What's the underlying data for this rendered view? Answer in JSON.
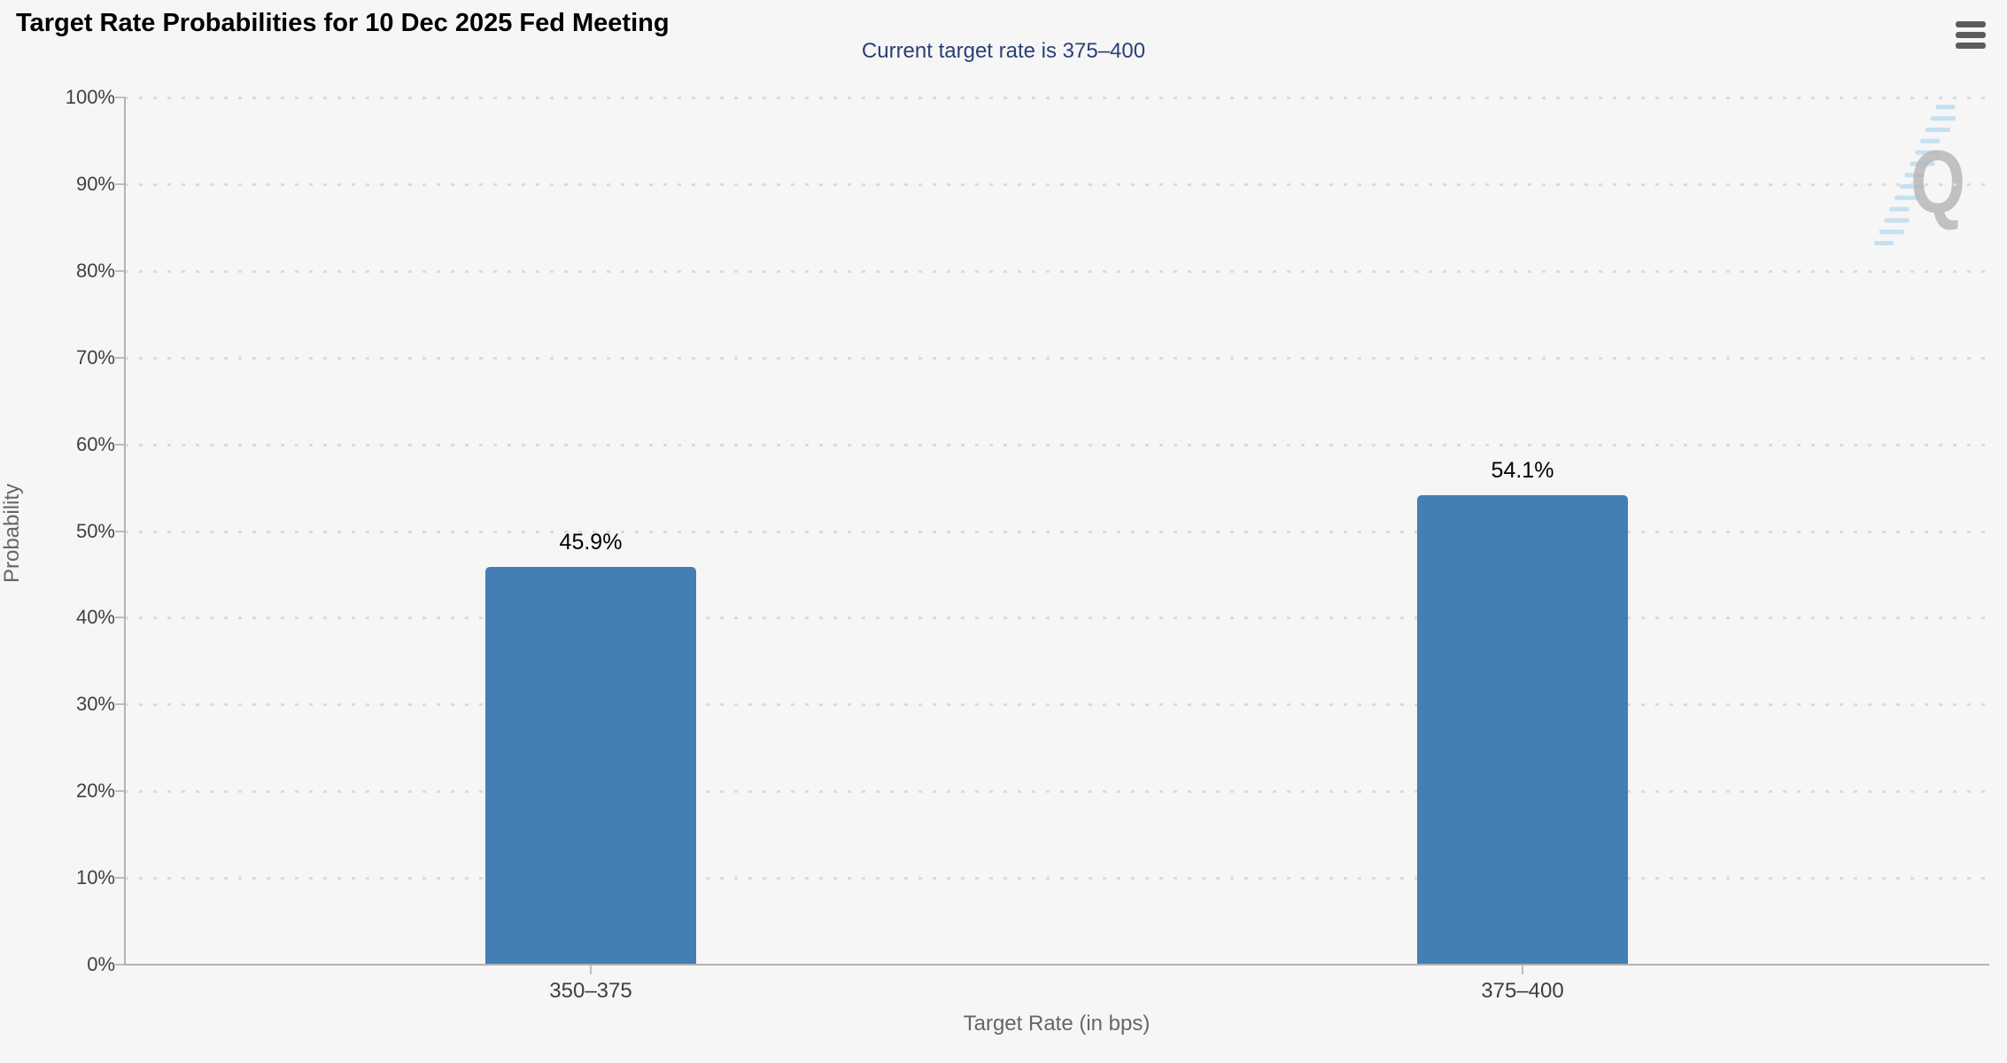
{
  "chart_data": {
    "type": "bar",
    "title": "Target Rate Probabilities for 10 Dec 2025 Fed Meeting",
    "subtitle": "Current target rate is 375–400",
    "categories": [
      "350–375",
      "375–400"
    ],
    "values": [
      45.9,
      54.1
    ],
    "value_labels": [
      "45.9%",
      "54.1%"
    ],
    "series": [
      {
        "name": "Probability",
        "values": [
          45.9,
          54.1
        ]
      }
    ],
    "xlabel": "Target Rate (in bps)",
    "ylabel": "Probability",
    "ylim": [
      0,
      100
    ],
    "yticks": [
      0,
      10,
      20,
      30,
      40,
      50,
      60,
      70,
      80,
      90,
      100
    ],
    "ytick_labels": [
      "0%",
      "10%",
      "20%",
      "30%",
      "40%",
      "50%",
      "60%",
      "70%",
      "80%",
      "90%",
      "100%"
    ],
    "grid": true,
    "grid_style": "dotted",
    "legend": "none",
    "bar_color": "#447eb4",
    "colors": {
      "background": "#f6f6f6",
      "subtitle": "#2b4077",
      "axis_line": "#b3b3b3",
      "gridline": "#dcdcdc",
      "tick_label": "#404040",
      "axis_title": "#666666",
      "data_label": "#000000",
      "menu_icon": "#5c5c5c",
      "watermark_letter": "#b8b8b8",
      "watermark_stripes": "#a5d2ef"
    }
  },
  "watermark": {
    "letter": "Q"
  },
  "menu": {
    "icon": "hamburger-icon"
  }
}
